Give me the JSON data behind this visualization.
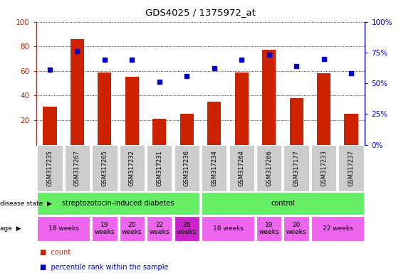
{
  "title": "GDS4025 / 1375972_at",
  "samples": [
    "GSM317235",
    "GSM317267",
    "GSM317265",
    "GSM317232",
    "GSM317231",
    "GSM317236",
    "GSM317234",
    "GSM317264",
    "GSM317266",
    "GSM317177",
    "GSM317233",
    "GSM317237"
  ],
  "bar_values": [
    31,
    86,
    59,
    55,
    21,
    25,
    35,
    59,
    77,
    38,
    58,
    25
  ],
  "dot_values": [
    61,
    76,
    69,
    69,
    51,
    56,
    62,
    69,
    73,
    64,
    70,
    58
  ],
  "bar_color": "#cc2200",
  "dot_color": "#0000cc",
  "ylim_left": [
    0,
    100
  ],
  "ylim_right": [
    0,
    100
  ],
  "yticks_left": [
    20,
    40,
    60,
    80,
    100
  ],
  "yticks_right": [
    0,
    25,
    50,
    75,
    100
  ],
  "ytick_labels_left": [
    "20",
    "40",
    "60",
    "80",
    "100"
  ],
  "ytick_labels_right": [
    "0%",
    "25%",
    "50%",
    "75%",
    "100%"
  ],
  "disease_state_color": "#66ee66",
  "age_color_normal": "#ee66ee",
  "age_color_dark": "#cc22cc",
  "sample_label_color": "#cccccc",
  "bg_color": "#ffffff",
  "tick_label_color_left": "#cc2200",
  "tick_label_color_right": "#0000cc",
  "legend_count_color": "#cc2200",
  "legend_dot_color": "#0000cc",
  "disease_spans": [
    [
      0,
      5,
      "streptozotocin-induced diabetes"
    ],
    [
      6,
      11,
      "control"
    ]
  ],
  "age_groups": [
    [
      0,
      1,
      "18 weeks",
      false
    ],
    [
      2,
      2,
      "19\nweeks",
      false
    ],
    [
      3,
      3,
      "20\nweeks",
      false
    ],
    [
      4,
      4,
      "22\nweeks",
      false
    ],
    [
      5,
      5,
      "26\nweeks",
      true
    ],
    [
      6,
      7,
      "18 weeks",
      false
    ],
    [
      8,
      8,
      "19\nweeks",
      false
    ],
    [
      9,
      9,
      "20\nweeks",
      false
    ],
    [
      10,
      11,
      "22 weeks",
      false
    ]
  ]
}
